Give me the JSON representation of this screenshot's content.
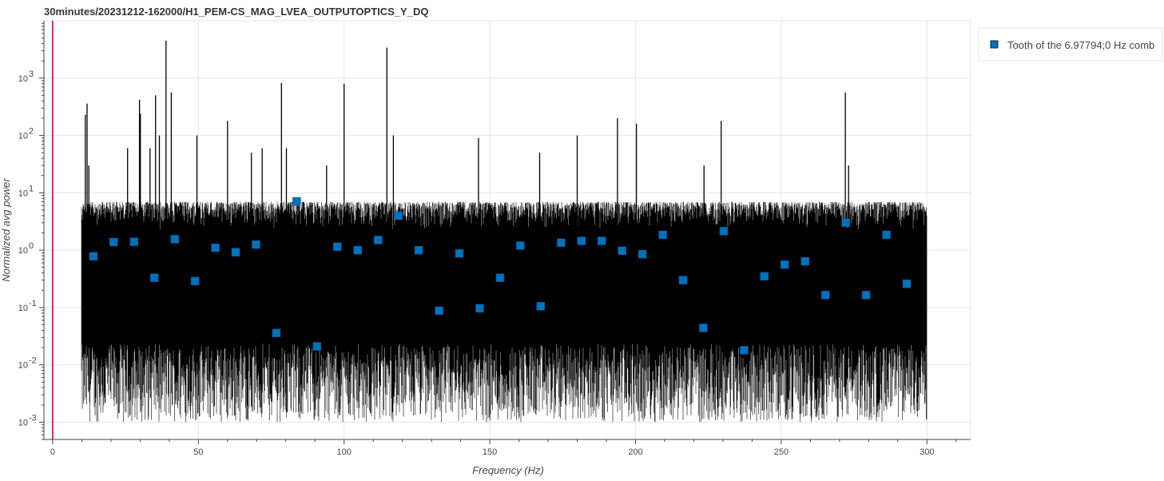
{
  "chart_data": {
    "type": "line",
    "title": "30minutes/20231212-162000/H1_PEM-CS_MAG_LVEA_OUTPUTOPTICS_Y_DQ",
    "xlabel": "Frequency (Hz)",
    "ylabel": "Normalized avg power",
    "xlim": [
      -3,
      315
    ],
    "ylim": [
      0.0005,
      10000
    ],
    "y_scale": "log",
    "x_ticks": [
      0,
      50,
      100,
      150,
      200,
      250,
      300
    ],
    "x_tick_labels": [
      "0",
      "50",
      "100",
      "150",
      "200",
      "250",
      "300"
    ],
    "y_ticks": [
      0.001,
      0.01,
      0.1,
      1,
      10,
      100,
      1000
    ],
    "y_tick_labels": [
      {
        "base": "10",
        "exp": "-3"
      },
      {
        "base": "10",
        "exp": "-2"
      },
      {
        "base": "10",
        "exp": "-1"
      },
      {
        "base": "10",
        "exp": "0"
      },
      {
        "base": "10",
        "exp": "1"
      },
      {
        "base": "10",
        "exp": "2"
      },
      {
        "base": "10",
        "exp": "3"
      }
    ],
    "grid": true,
    "legend_position": "outside-top-right",
    "colors": {
      "spectrum": "#000000",
      "comb_marker": "#0072bd",
      "vertical_line": "#e91e8c"
    },
    "spectrum": {
      "x_range": [
        10,
        300
      ],
      "noise_floor": [
        0.001,
        8
      ],
      "peaks": [
        [
          11.2,
          230
        ],
        [
          11.8,
          360
        ],
        [
          12.4,
          30
        ],
        [
          25.7,
          60
        ],
        [
          29.8,
          420
        ],
        [
          30.1,
          240
        ],
        [
          33.4,
          60
        ],
        [
          35.3,
          500
        ],
        [
          36.6,
          100
        ],
        [
          38.9,
          4500
        ],
        [
          40.7,
          560
        ],
        [
          49.5,
          100
        ],
        [
          60.0,
          180
        ],
        [
          68.2,
          50
        ],
        [
          71.9,
          60
        ],
        [
          78.5,
          820
        ],
        [
          80.2,
          60
        ],
        [
          100.0,
          800
        ],
        [
          94.0,
          30
        ],
        [
          114.7,
          3400
        ],
        [
          116.9,
          100
        ],
        [
          146.1,
          90
        ],
        [
          167.1,
          50
        ],
        [
          180.0,
          100
        ],
        [
          193.8,
          200
        ],
        [
          200.3,
          160
        ],
        [
          223.5,
          30
        ],
        [
          229.4,
          180
        ],
        [
          272.0,
          560
        ],
        [
          273.1,
          30
        ]
      ]
    },
    "vertical_line_x": 0,
    "series": [
      {
        "name": "Tooth of the 6.97794;0 Hz comb",
        "x": [
          13.96,
          20.93,
          27.91,
          34.89,
          41.87,
          48.85,
          55.82,
          62.8,
          69.78,
          76.76,
          83.74,
          90.71,
          97.69,
          104.67,
          111.65,
          118.63,
          125.6,
          132.58,
          139.56,
          146.54,
          153.52,
          160.49,
          167.47,
          174.45,
          181.43,
          188.41,
          195.38,
          202.36,
          209.34,
          216.32,
          223.3,
          230.27,
          237.25,
          244.23,
          251.21,
          258.19,
          265.16,
          272.14,
          279.12,
          286.1,
          293.08
        ],
        "y": [
          0.78,
          1.38,
          1.4,
          0.33,
          1.55,
          0.29,
          1.1,
          0.92,
          1.25,
          0.036,
          7.1,
          0.021,
          1.15,
          1.0,
          1.5,
          4.0,
          1.0,
          0.088,
          0.88,
          0.097,
          0.33,
          1.2,
          0.105,
          1.35,
          1.45,
          1.45,
          0.98,
          0.85,
          1.85,
          0.3,
          0.044,
          2.15,
          0.018,
          0.35,
          0.56,
          0.64,
          0.165,
          3.0,
          0.165,
          1.85,
          0.26
        ]
      }
    ]
  }
}
